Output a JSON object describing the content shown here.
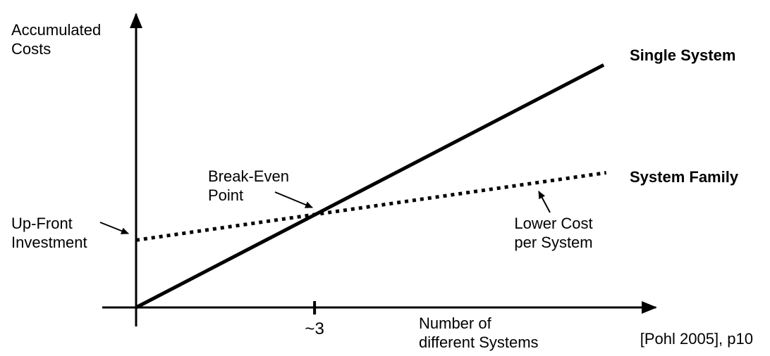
{
  "colors": {
    "background": "#ffffff",
    "line": "#000000",
    "text": "#000000"
  },
  "citation": "[Pohl 2005], p10",
  "chart_data": {
    "type": "line",
    "title": "",
    "ylabel": "Accumulated\nCosts",
    "xlabel": "Number of\ndifferent Systems",
    "x_range": [
      0,
      10.4
    ],
    "y_range": [
      0,
      10.9
    ],
    "grid": false,
    "legend_position": "labels-at-line-ends",
    "series": [
      {
        "name": "Single System",
        "line_style": "solid",
        "points": [
          [
            0,
            0
          ],
          [
            9.3,
            9.0
          ]
        ]
      },
      {
        "name": "System Family",
        "line_style": "dotted",
        "points": [
          [
            0,
            2.5
          ],
          [
            9.35,
            5.0
          ]
        ]
      }
    ],
    "x_ticks": [
      {
        "x": 3.55,
        "label": "~3"
      }
    ],
    "break_even": {
      "x": 3.55,
      "y": 3.45,
      "x_label": "~3"
    },
    "annotations": [
      {
        "text": "Break-Even\nPoint"
      },
      {
        "text": "Up-Front\nInvestment"
      },
      {
        "text": "Lower Cost\nper System"
      }
    ]
  }
}
